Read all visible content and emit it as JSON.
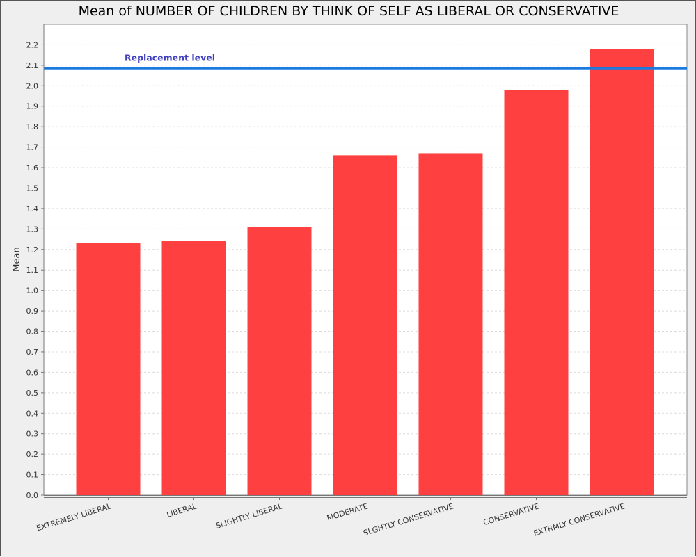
{
  "title": "Mean of NUMBER OF CHILDREN BY THINK OF SELF AS LIBERAL OR CONSERVATIVE",
  "chart_data": {
    "type": "bar",
    "title": "Mean of NUMBER OF CHILDREN BY THINK OF SELF AS LIBERAL OR CONSERVATIVE",
    "xlabel": "",
    "ylabel": "Mean",
    "ylim": [
      0,
      2.3
    ],
    "yticks": [
      0.0,
      0.1,
      0.2,
      0.3,
      0.4,
      0.5,
      0.6,
      0.7,
      0.8,
      0.9,
      1.0,
      1.1,
      1.2,
      1.3,
      1.4,
      1.5,
      1.6,
      1.7,
      1.8,
      1.9,
      2.0,
      2.1,
      2.2
    ],
    "grid": true,
    "categories": [
      "EXTREMELY LIBERAL",
      "LIBERAL",
      "SLIGHTLY LIBERAL",
      "MODERATE",
      "SLGHTLY CONSERVATIVE",
      "CONSERVATIVE",
      "EXTRMLY CONSERVATIVE"
    ],
    "values": [
      1.23,
      1.24,
      1.31,
      1.66,
      1.67,
      1.98,
      2.18
    ],
    "bar_color": "#ff4040",
    "reference_line": {
      "label": "Replacement level",
      "value": 2.085,
      "color": "#1b7ae0",
      "label_color": "#3f3fbf"
    }
  }
}
